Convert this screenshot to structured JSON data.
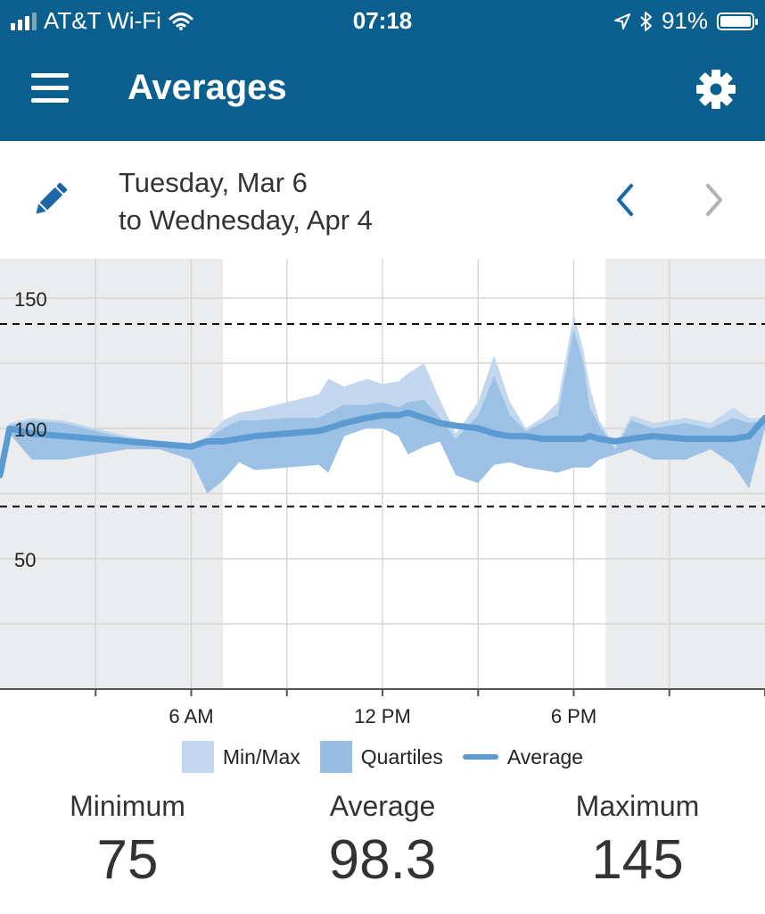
{
  "status_bar": {
    "carrier": "AT&T Wi-Fi",
    "time": "07:18",
    "battery": "91%"
  },
  "header": {
    "title": "Averages"
  },
  "date_range": {
    "line1": "Tuesday, Mar 6",
    "line2": "to Wednesday, Apr 4"
  },
  "colors": {
    "brand": "#0b5f8f",
    "minmax": "#c3d8ee",
    "quartiles": "#98bfe3",
    "average": "#5b9bd2",
    "night": "#ebecee"
  },
  "icons": [
    "menu-icon",
    "wifi-icon",
    "location-arrow-icon",
    "bluetooth-icon",
    "battery-icon",
    "gear-icon",
    "pencil-icon",
    "chevron-left-icon",
    "chevron-right-icon"
  ],
  "legend": {
    "minmax": "Min/Max",
    "quartiles": "Quartiles",
    "average": "Average"
  },
  "stats": {
    "min_label": "Minimum",
    "min_value": "75",
    "avg_label": "Average",
    "avg_value": "98.3",
    "max_label": "Maximum",
    "max_value": "145"
  },
  "chart_data": {
    "type": "area",
    "x_unit": "hour of day",
    "xlim": [
      0,
      24
    ],
    "ylim": [
      0,
      165
    ],
    "y_ticks": [
      50,
      100,
      150
    ],
    "y_tick_labels": [
      "50",
      "100",
      "150"
    ],
    "x_ticks": [
      6,
      12,
      18
    ],
    "x_tick_labels": [
      "6 AM",
      "12 PM",
      "6 PM"
    ],
    "target_lines": [
      70,
      140
    ],
    "night_shading": [
      [
        0,
        7
      ],
      [
        19,
        24
      ]
    ],
    "x": [
      0,
      0.3,
      1,
      2,
      3,
      4,
      5,
      6,
      6.5,
      7,
      7.5,
      8,
      9,
      10,
      10.3,
      10.8,
      11.5,
      12,
      12.5,
      12.8,
      13.3,
      13.8,
      14.3,
      15,
      15.5,
      16,
      16.5,
      17,
      17.5,
      18,
      18.3,
      18.5,
      18.8,
      19.3,
      19.8,
      20.5,
      21.5,
      22.3,
      23,
      23.5,
      24
    ],
    "series": [
      {
        "name": "Average",
        "values": [
          82,
          100,
          98,
          97,
          96,
          95,
          94,
          93,
          95,
          95,
          96,
          97,
          98,
          99,
          100,
          102,
          104,
          105,
          105,
          106,
          104,
          102,
          101,
          100,
          98,
          97,
          97,
          96,
          96,
          96,
          96,
          97,
          96,
          95,
          96,
          97,
          96,
          96,
          96,
          97,
          104
        ]
      },
      {
        "name": "Min/Max",
        "upper": [
          82,
          102,
          104,
          103,
          100,
          97,
          95,
          94,
          97,
          103,
          106,
          107,
          110,
          113,
          119,
          116,
          119,
          117,
          118,
          121,
          125,
          111,
          98,
          110,
          128,
          110,
          100,
          104,
          110,
          144,
          130,
          116,
          103,
          93,
          105,
          102,
          104,
          102,
          108,
          104,
          104
        ],
        "lower": [
          81,
          98,
          88,
          88,
          90,
          92,
          92,
          88,
          75,
          80,
          87,
          84,
          85,
          86,
          83,
          97,
          100,
          100,
          97,
          90,
          93,
          95,
          82,
          79,
          86,
          87,
          85,
          84,
          83,
          85,
          85,
          85,
          88,
          90,
          92,
          88,
          88,
          92,
          86,
          77,
          100
        ]
      },
      {
        "name": "Quartiles",
        "upper": [
          82,
          101,
          103,
          102,
          99,
          96,
          94,
          93,
          96,
          100,
          103,
          103,
          104,
          104,
          106,
          109,
          109,
          110,
          108,
          110,
          111,
          104,
          96,
          105,
          120,
          105,
          99,
          102,
          105,
          138,
          125,
          108,
          101,
          92,
          103,
          100,
          102,
          100,
          104,
          102,
          103
        ]
      }
    ]
  }
}
